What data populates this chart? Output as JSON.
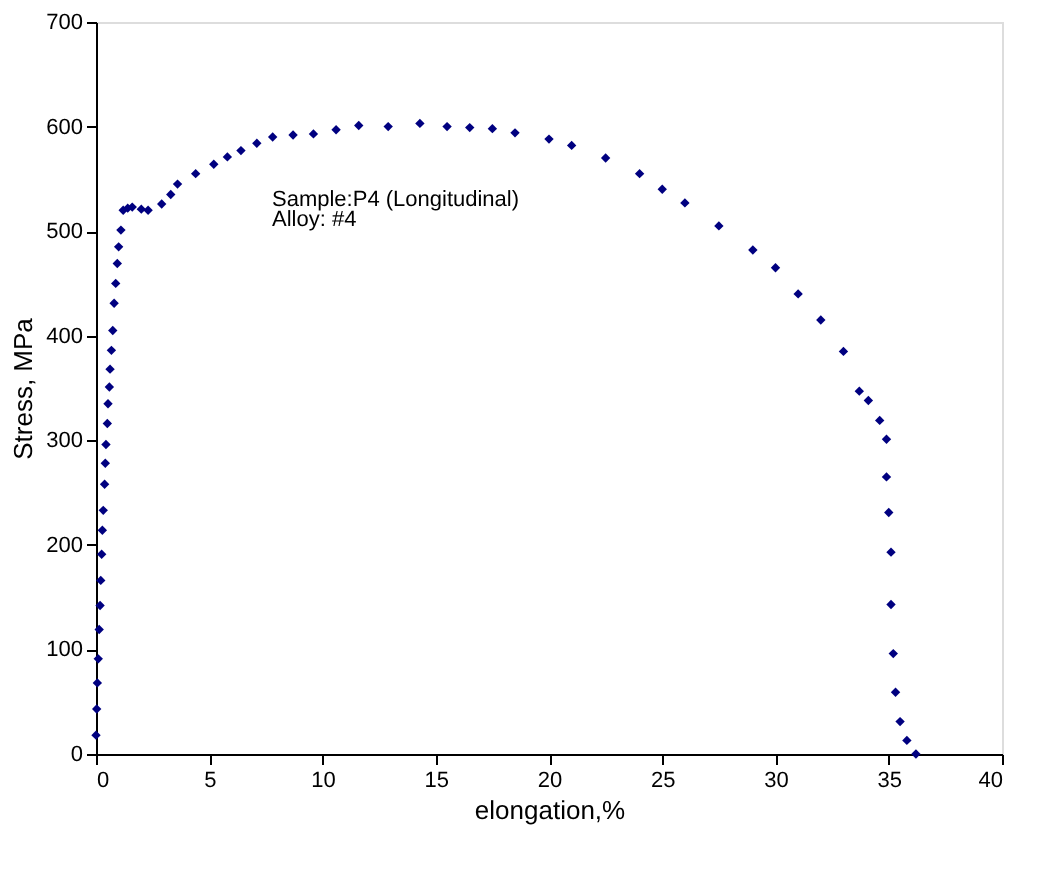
{
  "chart_data": {
    "type": "scatter",
    "xlabel": "elongation,%",
    "ylabel": "Stress, MPa",
    "xlim": [
      0,
      40
    ],
    "ylim": [
      0,
      700
    ],
    "xticks": [
      0,
      5,
      10,
      15,
      20,
      25,
      30,
      35,
      40
    ],
    "yticks": [
      0,
      100,
      200,
      300,
      400,
      500,
      600,
      700
    ],
    "grid": false,
    "legend": false,
    "marker": "diamond",
    "annotations": [
      "Sample:P4 (Longitudinal)",
      "Alloy: #4"
    ],
    "series": [
      {
        "color": "#000080",
        "x": [
          0,
          0.03,
          0.06,
          0.1,
          0.14,
          0.18,
          0.21,
          0.25,
          0.28,
          0.32,
          0.38,
          0.41,
          0.44,
          0.5,
          0.53,
          0.59,
          0.62,
          0.68,
          0.74,
          0.8,
          0.87,
          0.94,
          1.0,
          1.1,
          1.2,
          1.4,
          1.6,
          2.0,
          2.3,
          2.9,
          3.3,
          3.6,
          4.4,
          5.2,
          5.8,
          6.4,
          7.1,
          7.8,
          8.7,
          9.6,
          10.6,
          11.6,
          12.9,
          14.3,
          15.5,
          16.5,
          17.5,
          18.5,
          20,
          21,
          22.5,
          24,
          25,
          26,
          27.5,
          29,
          30,
          31,
          32,
          33,
          33.7,
          34.1,
          34.6,
          34.9,
          34.9,
          35.0,
          35.1,
          35.1,
          35.2,
          35.3,
          35.5,
          35.8,
          36.2
        ],
        "values": [
          18,
          43,
          68,
          91,
          119,
          142,
          166,
          191,
          214,
          233,
          258,
          278,
          296,
          316,
          335,
          351,
          368,
          386,
          405,
          431,
          450,
          469,
          485,
          501,
          520,
          522,
          523,
          521,
          520,
          526,
          535,
          545,
          555,
          564,
          571,
          577,
          584,
          590,
          592,
          593,
          597,
          601,
          600,
          603,
          600,
          599,
          598,
          594,
          588,
          582,
          570,
          555,
          540,
          527,
          505,
          482,
          465,
          440,
          415,
          385,
          347,
          338,
          319,
          301,
          265,
          231,
          193,
          143,
          96,
          59,
          31,
          13,
          0
        ]
      }
    ]
  }
}
